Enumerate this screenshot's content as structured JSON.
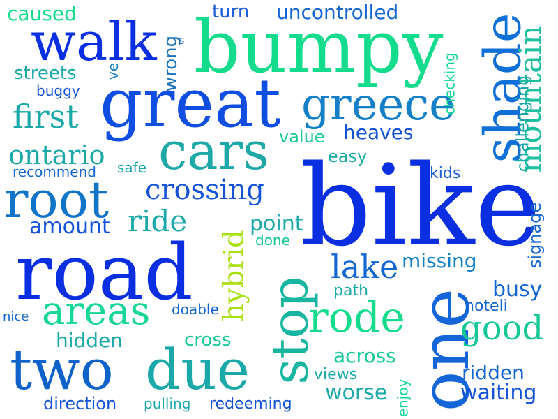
{
  "words": [
    {
      "text": "bike",
      "color": "#0a2fe0"
    },
    {
      "text": "road",
      "color": "#0a2fe0"
    },
    {
      "text": "bumpy",
      "color": "#14dc8c"
    },
    {
      "text": "great",
      "color": "#0f4ee0"
    },
    {
      "text": "shade",
      "color": "#1070d8"
    },
    {
      "text": "walk",
      "color": "#0a2fe0"
    },
    {
      "text": "greece",
      "color": "#1580c8"
    },
    {
      "text": "cars",
      "color": "#1fa8a8"
    },
    {
      "text": "root",
      "color": "#1074c8"
    },
    {
      "text": "one",
      "color": "#1465d8"
    },
    {
      "text": "two",
      "color": "#0f62c8"
    },
    {
      "text": "due",
      "color": "#1ba8a8"
    },
    {
      "text": "stop",
      "color": "#18b6a0"
    },
    {
      "text": "areas",
      "color": "#16d894"
    },
    {
      "text": "rode",
      "color": "#14dc8c"
    },
    {
      "text": "mountain",
      "color": "#1fc0a0"
    },
    {
      "text": "hybrid",
      "color": "#a8e010"
    },
    {
      "text": "first",
      "color": "#1ba8a8"
    },
    {
      "text": "ontario",
      "color": "#1ba8a8"
    },
    {
      "text": "crossing",
      "color": "#1452d8"
    },
    {
      "text": "ride",
      "color": "#1ba8a8"
    },
    {
      "text": "good",
      "color": "#16c898"
    },
    {
      "text": "lake",
      "color": "#1466d0"
    },
    {
      "text": "caused",
      "color": "#14dc8c"
    },
    {
      "text": "turn",
      "color": "#1f5fd8"
    },
    {
      "text": "uncontrolled",
      "color": "#1466d0"
    },
    {
      "text": "streets",
      "color": "#1ba8a8"
    },
    {
      "text": "wrong",
      "color": "#1a72b8"
    },
    {
      "text": "ve",
      "color": "#1580c8"
    },
    {
      "text": "s",
      "color": "#1466d0"
    },
    {
      "text": "buggy",
      "color": "#1452d8"
    },
    {
      "text": "checking",
      "color": "#16d894"
    },
    {
      "text": "challenging",
      "color": "#1ba8a8"
    },
    {
      "text": "heaves",
      "color": "#1452d8"
    },
    {
      "text": "value",
      "color": "#16c898"
    },
    {
      "text": "easy",
      "color": "#1ba8a8"
    },
    {
      "text": "recommend",
      "color": "#1466d0"
    },
    {
      "text": "safe",
      "color": "#1ba8a8"
    },
    {
      "text": "kids",
      "color": "#1f5fd8"
    },
    {
      "text": "amount",
      "color": "#1452d8"
    },
    {
      "text": "point",
      "color": "#1ba8a8"
    },
    {
      "text": "done",
      "color": "#16c898"
    },
    {
      "text": "signage",
      "color": "#1466d0"
    },
    {
      "text": "missing",
      "color": "#1580c8"
    },
    {
      "text": "busy",
      "color": "#1466d0"
    },
    {
      "text": "path",
      "color": "#1ba8a8"
    },
    {
      "text": "hoteli",
      "color": "#1466d0"
    },
    {
      "text": "nice",
      "color": "#1466d0"
    },
    {
      "text": "doable",
      "color": "#1466d0"
    },
    {
      "text": "hidden",
      "color": "#1ba8a8"
    },
    {
      "text": "cross",
      "color": "#16c898"
    },
    {
      "text": "across",
      "color": "#16c898"
    },
    {
      "text": "views",
      "color": "#1ba8a8"
    },
    {
      "text": "ridden",
      "color": "#1466d0"
    },
    {
      "text": "enjoy",
      "color": "#16d894"
    },
    {
      "text": "worse",
      "color": "#1ba8a8"
    },
    {
      "text": "waiting",
      "color": "#1452d8"
    },
    {
      "text": "direction",
      "color": "#1452d8"
    },
    {
      "text": "pulling",
      "color": "#1ba8a8"
    },
    {
      "text": "redeeming",
      "color": "#1452d8"
    }
  ]
}
